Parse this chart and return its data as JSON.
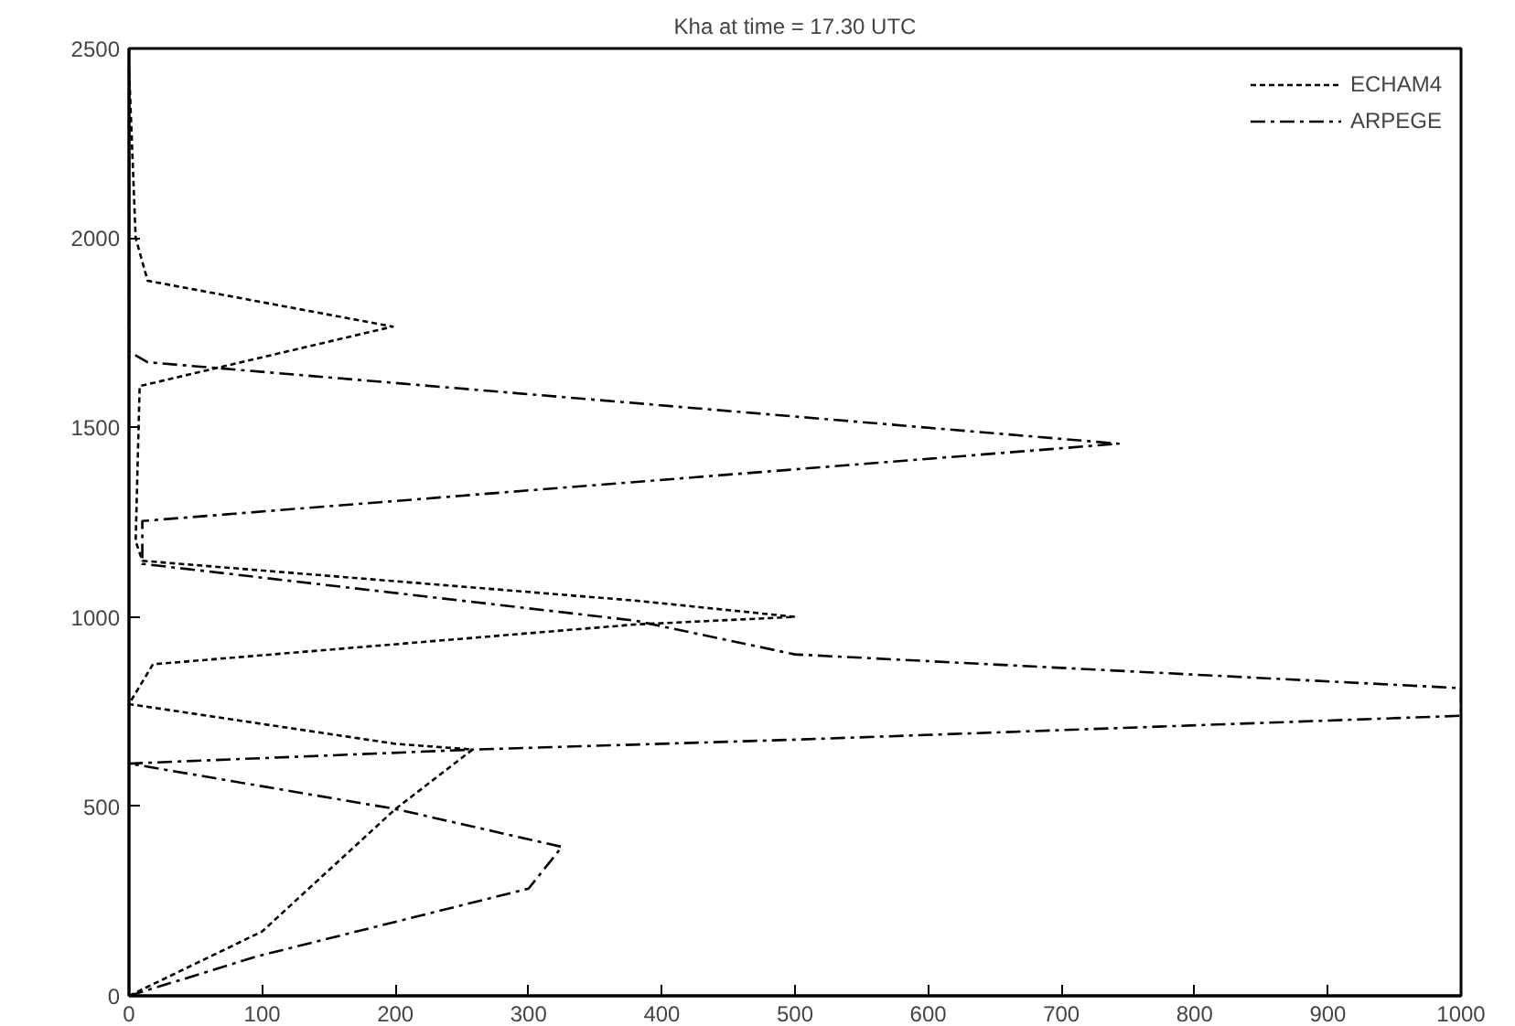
{
  "chart_data": {
    "type": "line",
    "title": "Kha at time = 17.30 UTC",
    "xlim": [
      0,
      1000
    ],
    "xticks": [
      0,
      100,
      200,
      300,
      400,
      500,
      600,
      700,
      800,
      900,
      1000
    ],
    "ylim": [
      0,
      2500
    ],
    "yticks": [
      0,
      500,
      1000,
      1500,
      2000,
      2500
    ],
    "grid": false,
    "legend": "top right",
    "series": [
      {
        "name": "ECHAM4",
        "color": "#000000",
        "line_style": "dotted",
        "x": [
          0,
          100,
          200,
          258,
          200,
          0,
          18,
          380,
          500,
          380,
          10,
          5,
          8,
          198,
          14,
          5,
          0
        ],
        "values": [
          0,
          170,
          493,
          650,
          665,
          770,
          875,
          980,
          1000,
          1043,
          1148,
          1200,
          1609,
          1766,
          1887,
          2000,
          2450
        ]
      },
      {
        "name": "ARPEGE",
        "color": "#000000",
        "line_style": "dashdot",
        "x": [
          0,
          97,
          300,
          325,
          200,
          0,
          260,
          500,
          1000,
          1000,
          500,
          380,
          10,
          10,
          743,
          14,
          0,
          0
        ],
        "values": [
          0,
          105,
          283,
          393,
          493,
          613,
          650,
          676,
          739,
          812,
          901,
          990,
          1140,
          1253,
          1457,
          1672,
          1700,
          2400
        ]
      }
    ]
  }
}
